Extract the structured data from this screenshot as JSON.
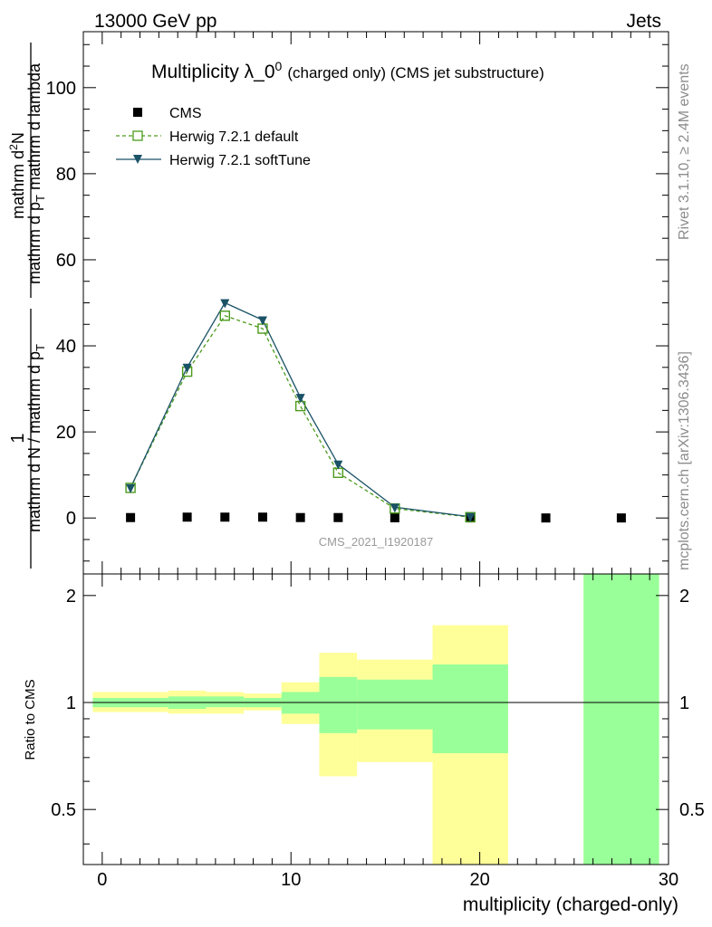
{
  "header": {
    "left": "13000 GeV pp",
    "right": "Jets"
  },
  "side_text": {
    "rivet": "Rivet 3.1.10, ≥ 2.4M events",
    "mcplots": "mcplots.cern.ch [arXiv:1306.3436]"
  },
  "chart_data": [
    {
      "type": "scatter",
      "title_main": "Multiplicity λ_0",
      "title_sup": "0",
      "title_rest": "(charged only) (CMS jet substructure)",
      "watermark": "CMS_2021_I1920187",
      "ylabel_numerator": "1",
      "ylabel_denominator": "mathrm d N / mathrm d p",
      "ylabel_right_numerator": "mathrm d",
      "ylabel_right_numerator_sup": "2",
      "ylabel_right_numerator_end": "N",
      "ylabel_right_denominator": "mathrm d p",
      "ylabel_right_denominator_end": " mathrm d lambda",
      "ylabel_sub": "T",
      "xlim": [
        -1,
        30
      ],
      "ylim": [
        -13,
        113
      ],
      "yticks": [
        0,
        20,
        40,
        60,
        80,
        100
      ],
      "ytick_labels": [
        "0",
        "20",
        "40",
        "60",
        "80",
        "100"
      ],
      "legend": [
        {
          "label": "CMS"
        },
        {
          "label": "Herwig 7.2.1 default"
        },
        {
          "label": "Herwig 7.2.1 softTune"
        }
      ],
      "series": [
        {
          "name": "CMS",
          "color": "#000000",
          "marker": "square-filled",
          "x": [
            1.5,
            4.5,
            6.5,
            8.5,
            10.5,
            12.5,
            15.5,
            19.5,
            23.5,
            27.5
          ],
          "y": [
            0.1,
            0.2,
            0.2,
            0.2,
            0.1,
            0.1,
            0.05,
            0.02,
            0.01,
            0.01
          ]
        },
        {
          "name": "Herwig 7.2.1 default",
          "color": "#4c9a1c",
          "marker": "square-open",
          "line": "dashed",
          "x": [
            1.5,
            4.5,
            6.5,
            8.5,
            10.5,
            12.5,
            15.5,
            19.5
          ],
          "y": [
            7,
            34,
            47,
            44,
            26,
            10.5,
            2.2,
            0.2
          ]
        },
        {
          "name": "Herwig 7.2.1 softTune",
          "color": "#1a5266",
          "marker": "triangle-down-filled",
          "line": "solid",
          "x": [
            1.5,
            4.5,
            6.5,
            8.5,
            10.5,
            12.5,
            15.5,
            19.5
          ],
          "y": [
            7,
            35,
            50,
            46,
            28,
            12.5,
            2.5,
            0.3
          ]
        }
      ]
    },
    {
      "type": "area",
      "ylabel": "Ratio to CMS",
      "xlabel": "multiplicity (charged-only)",
      "xlim": [
        -1,
        30
      ],
      "ylim": [
        0.35,
        2.3
      ],
      "xticks": [
        0,
        10,
        20,
        30
      ],
      "xtick_labels": [
        "0",
        "10",
        "20",
        "30"
      ],
      "yticks": [
        0.5,
        1,
        2
      ],
      "ytick_labels": [
        "0.5",
        "1",
        "2"
      ],
      "reference_line": 1,
      "bands": {
        "yellow_color": "#ffff99",
        "green_color": "#99ff99",
        "bins": [
          {
            "x0": -0.5,
            "x1": 3.5,
            "y_lo": 0.94,
            "y_hi": 1.07,
            "g_lo": 0.97,
            "g_hi": 1.03
          },
          {
            "x0": 3.5,
            "x1": 5.5,
            "y_lo": 0.93,
            "y_hi": 1.08,
            "g_lo": 0.96,
            "g_hi": 1.04
          },
          {
            "x0": 5.5,
            "x1": 7.5,
            "y_lo": 0.93,
            "y_hi": 1.07,
            "g_lo": 0.97,
            "g_hi": 1.04
          },
          {
            "x0": 7.5,
            "x1": 9.5,
            "y_lo": 0.95,
            "y_hi": 1.06,
            "g_lo": 0.97,
            "g_hi": 1.03
          },
          {
            "x0": 9.5,
            "x1": 11.5,
            "y_lo": 0.87,
            "y_hi": 1.14,
            "g_lo": 0.93,
            "g_hi": 1.07
          },
          {
            "x0": 11.5,
            "x1": 13.5,
            "y_lo": 0.62,
            "y_hi": 1.38,
            "g_lo": 0.82,
            "g_hi": 1.18
          },
          {
            "x0": 13.5,
            "x1": 17.5,
            "y_lo": 0.68,
            "y_hi": 1.32,
            "g_lo": 0.84,
            "g_hi": 1.16
          },
          {
            "x0": 17.5,
            "x1": 21.5,
            "y_lo": 0.35,
            "y_hi": 1.65,
            "g_lo": 0.72,
            "g_hi": 1.28
          },
          {
            "x0": 25.5,
            "x1": 29.5,
            "y_lo": 0.35,
            "y_hi": 2.3,
            "g_lo": 0.35,
            "g_hi": 2.3
          }
        ]
      }
    }
  ]
}
